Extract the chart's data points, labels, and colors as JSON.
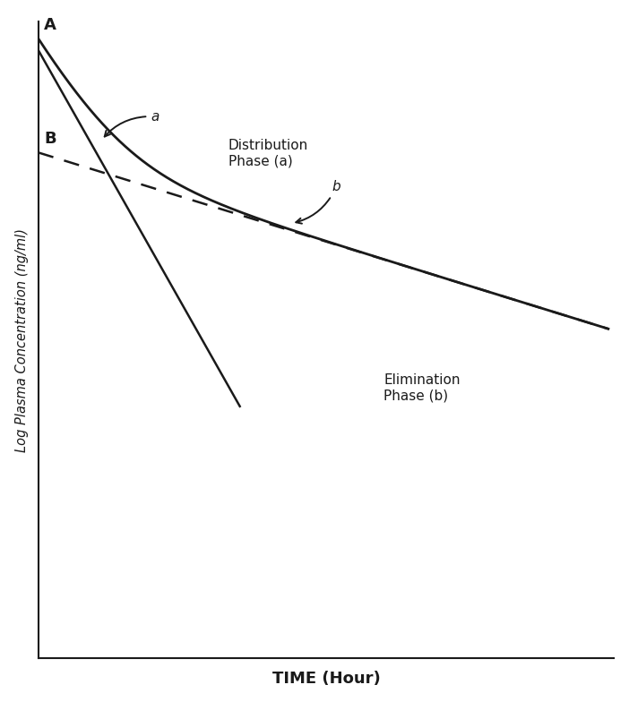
{
  "xlabel": "TIME (Hour)",
  "ylabel": "Log Plasma Concentration (ng/ml)",
  "line_color": "#1a1a1a",
  "figsize": [
    7.02,
    7.84
  ],
  "dpi": 100,
  "label_A": "A",
  "label_B": "B",
  "label_a": "a",
  "label_b": "b",
  "dist_phase_label": "Distribution\nPhase (a)",
  "elim_phase_label": "Elimination\nPhase (b)",
  "A_coef": 9.0,
  "alpha": 1.6,
  "B_coef": 1.8,
  "beta": 0.28,
  "xlim": [
    0,
    10
  ],
  "ylim_log": [
    -3.2,
    1.15
  ]
}
